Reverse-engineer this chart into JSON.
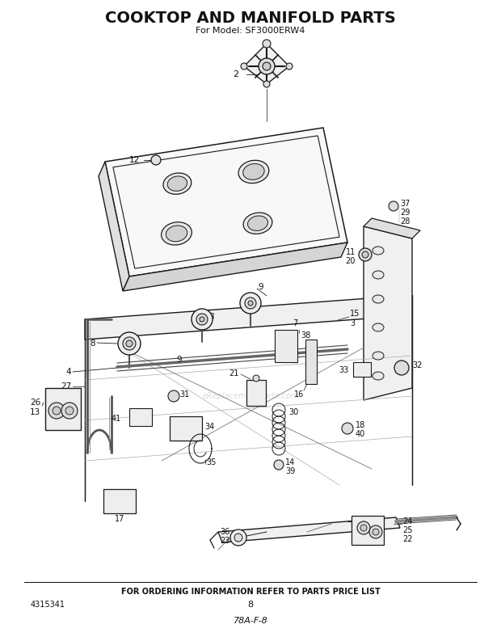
{
  "title": "COOKTOP AND MANIFOLD PARTS",
  "subtitle": "For Model: SF3000ERW4",
  "footer_text": "FOR ORDERING INFORMATION REFER TO PARTS PRICE LIST",
  "part_number_left": "4315341",
  "page_number": "8",
  "bottom_code": "78A-F-8",
  "background_color": "#ffffff",
  "title_fontsize": 13,
  "subtitle_fontsize": 8,
  "footer_fontsize": 7,
  "fig_width": 6.2,
  "fig_height": 7.88,
  "dpi": 100,
  "line_color": "#1a1a1a",
  "text_color": "#111111",
  "watermark": "eReplacementParts.com"
}
